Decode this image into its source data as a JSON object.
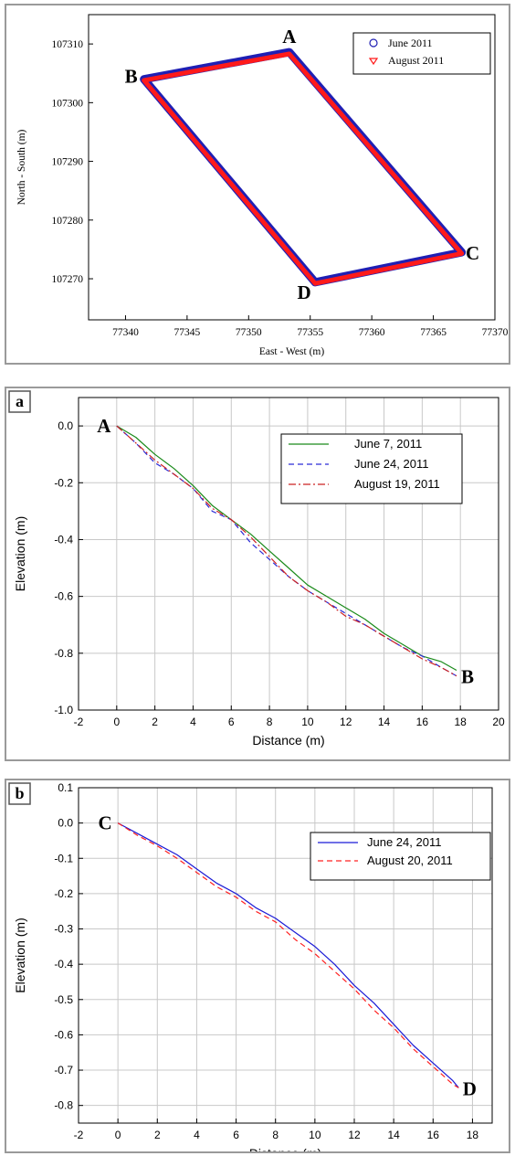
{
  "chart_data": [
    {
      "type": "line",
      "panel_label": "",
      "title": "",
      "xlabel": "East - West  (m)",
      "ylabel": "North - South  (m)",
      "xlim": [
        77337,
        77370
      ],
      "ylim": [
        107263,
        107315
      ],
      "xticks": [
        "77340",
        "77345",
        "77350",
        "77355",
        "77360",
        "77365",
        "77370"
      ],
      "yticks": [
        "107270",
        "107280",
        "107290",
        "107300",
        "107310"
      ],
      "grid": false,
      "legend_position": "top-right",
      "series": [
        {
          "name": "June 2011",
          "color": "#1f1fb4",
          "marker": "circle",
          "x": [
            77353.3,
            77341.5,
            77355.4,
            77367.3,
            77353.3
          ],
          "y": [
            107308.6,
            107304.0,
            107269.4,
            107274.5,
            107308.6
          ]
        },
        {
          "name": "August 2011",
          "color": "#ff1a1a",
          "marker": "triangle-down",
          "x": [
            77353.3,
            77341.5,
            77355.4,
            77367.3,
            77353.3
          ],
          "y": [
            107308.3,
            107303.8,
            107269.2,
            107274.3,
            107308.3
          ]
        }
      ],
      "annotations": [
        {
          "text": "A",
          "x": 77353.3,
          "y": 107308.6,
          "anchor": "above"
        },
        {
          "text": "B",
          "x": 77341.5,
          "y": 107304.0,
          "anchor": "left"
        },
        {
          "text": "C",
          "x": 77367.3,
          "y": 107274.5,
          "anchor": "right"
        },
        {
          "text": "D",
          "x": 77355.4,
          "y": 107269.4,
          "anchor": "below-left"
        }
      ]
    },
    {
      "type": "line",
      "panel_label": "a",
      "title": "",
      "xlabel": "Distance (m)",
      "ylabel": "Elevation (m)",
      "xlim": [
        -2,
        20
      ],
      "ylim": [
        -1.0,
        0.1
      ],
      "xticks": [
        "-2",
        "0",
        "2",
        "4",
        "6",
        "8",
        "10",
        "12",
        "14",
        "16",
        "18",
        "20"
      ],
      "yticks": [
        "-1.0",
        "-0.8",
        "-0.6",
        "-0.4",
        "-0.2",
        "0.0"
      ],
      "grid": true,
      "legend_position": "top-right",
      "series": [
        {
          "name": "June 7, 2011",
          "color": "#1a8a1a",
          "dash": "solid",
          "x": [
            0,
            1,
            2,
            3,
            4,
            5,
            6,
            7,
            8,
            9,
            10,
            11,
            12,
            13,
            14,
            15,
            16,
            17,
            17.8
          ],
          "y": [
            0.0,
            -0.04,
            -0.1,
            -0.15,
            -0.21,
            -0.28,
            -0.33,
            -0.38,
            -0.44,
            -0.5,
            -0.56,
            -0.6,
            -0.64,
            -0.68,
            -0.73,
            -0.77,
            -0.81,
            -0.83,
            -0.86
          ]
        },
        {
          "name": "June 24, 2011",
          "color": "#2a2ad6",
          "dash": "dashed",
          "x": [
            0,
            1,
            2,
            3,
            4,
            5,
            6,
            7,
            8,
            9,
            10,
            11,
            12,
            13,
            14,
            15,
            16,
            17,
            17.8
          ],
          "y": [
            0.0,
            -0.06,
            -0.13,
            -0.17,
            -0.22,
            -0.3,
            -0.33,
            -0.41,
            -0.47,
            -0.53,
            -0.58,
            -0.62,
            -0.66,
            -0.7,
            -0.74,
            -0.78,
            -0.81,
            -0.85,
            -0.88
          ]
        },
        {
          "name": "August 19, 2011",
          "color": "#cc2222",
          "dash": "dashdot",
          "x": [
            0,
            1,
            2,
            3,
            4,
            5,
            6,
            7,
            8,
            9,
            10,
            11,
            12,
            13,
            14,
            15,
            16,
            17,
            17.8
          ],
          "y": [
            0.0,
            -0.06,
            -0.12,
            -0.17,
            -0.22,
            -0.29,
            -0.33,
            -0.39,
            -0.46,
            -0.53,
            -0.58,
            -0.62,
            -0.67,
            -0.7,
            -0.74,
            -0.78,
            -0.82,
            -0.85,
            -0.88
          ]
        }
      ],
      "annotations": [
        {
          "text": "A",
          "x": 0,
          "y": 0.0,
          "anchor": "left"
        },
        {
          "text": "B",
          "x": 17.8,
          "y": -0.88,
          "anchor": "right"
        }
      ]
    },
    {
      "type": "line",
      "panel_label": "b",
      "title": "",
      "xlabel": "Distance (m)",
      "ylabel": "Elevation (m)",
      "xlim": [
        -2,
        19
      ],
      "ylim": [
        -0.85,
        0.1
      ],
      "xticks": [
        "-2",
        "0",
        "2",
        "4",
        "6",
        "8",
        "10",
        "12",
        "14",
        "16",
        "18"
      ],
      "yticks": [
        "-0.8",
        "-0.7",
        "-0.6",
        "-0.5",
        "-0.4",
        "-0.3",
        "-0.2",
        "-0.1",
        "0.0",
        "0.1"
      ],
      "grid": true,
      "legend_position": "top-right",
      "series": [
        {
          "name": "June 24, 2011",
          "color": "#1a1ad6",
          "dash": "solid",
          "x": [
            0,
            1,
            2,
            3,
            4,
            5,
            6,
            7,
            8,
            9,
            10,
            11,
            12,
            13,
            14,
            15,
            16,
            17,
            17.3
          ],
          "y": [
            0.0,
            -0.03,
            -0.06,
            -0.09,
            -0.13,
            -0.17,
            -0.2,
            -0.24,
            -0.27,
            -0.31,
            -0.35,
            -0.4,
            -0.46,
            -0.51,
            -0.57,
            -0.63,
            -0.68,
            -0.73,
            -0.75
          ]
        },
        {
          "name": "August 20, 2011",
          "color": "#ff2020",
          "dash": "dashed",
          "x": [
            0,
            1,
            2,
            3,
            4,
            5,
            6,
            7,
            8,
            9,
            10,
            11,
            12,
            13,
            14,
            15,
            16,
            17,
            17.3
          ],
          "y": [
            0.0,
            -0.035,
            -0.065,
            -0.1,
            -0.14,
            -0.18,
            -0.21,
            -0.25,
            -0.28,
            -0.33,
            -0.37,
            -0.42,
            -0.47,
            -0.53,
            -0.58,
            -0.64,
            -0.69,
            -0.74,
            -0.75
          ]
        }
      ],
      "annotations": [
        {
          "text": "C",
          "x": 0,
          "y": 0.0,
          "anchor": "left"
        },
        {
          "text": "D",
          "x": 17.3,
          "y": -0.75,
          "anchor": "right"
        }
      ]
    }
  ]
}
